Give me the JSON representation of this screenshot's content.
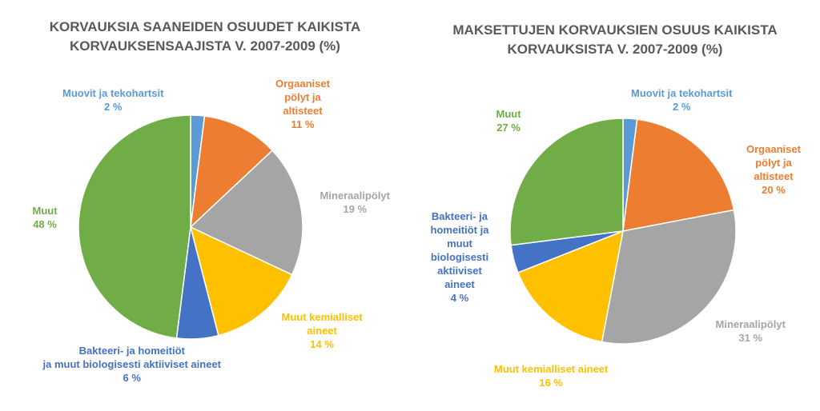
{
  "colors": {
    "blue_light": "#5B9BD5",
    "orange": "#ED7D31",
    "gray": "#A5A5A5",
    "yellow": "#FFC000",
    "blue_dark": "#4472C4",
    "green": "#70AD47"
  },
  "chart_data": [
    {
      "type": "pie",
      "title": [
        "KORVAUKSIA SAANEIDEN OSUUDET KAIKISTA",
        "KORVAUKSENSAAJISTA V. 2007-2009 (%)"
      ],
      "slices": [
        {
          "label": [
            "Muovit ja tekohartsit"
          ],
          "value": 2,
          "value_label": "2 %",
          "color": "#5B9BD5"
        },
        {
          "label": [
            "Orgaaniset",
            "pölyt ja",
            "altisteet"
          ],
          "value": 11,
          "value_label": "11 %",
          "color": "#ED7D31"
        },
        {
          "label": [
            "Mineraalipölyt"
          ],
          "value": 19,
          "value_label": "19 %",
          "color": "#A5A5A5"
        },
        {
          "label": [
            "Muut kemialliset",
            "aineet"
          ],
          "value": 14,
          "value_label": "14 %",
          "color": "#FFC000"
        },
        {
          "label": [
            "Bakteeri- ja homeitiöt",
            "ja muut biologisesti aktiiviset aineet"
          ],
          "value": 6,
          "value_label": "6 %",
          "color": "#4472C4"
        },
        {
          "label": [
            "Muut"
          ],
          "value": 48,
          "value_label": "48 %",
          "color": "#70AD47"
        }
      ]
    },
    {
      "type": "pie",
      "title": [
        "MAKSETTUJEN KORVAUKSIEN OSUUS KAIKISTA",
        "KORVAUKSISTA V. 2007-2009 (%)"
      ],
      "slices": [
        {
          "label": [
            "Muovit ja tekohartsit"
          ],
          "value": 2,
          "value_label": "2 %",
          "color": "#5B9BD5"
        },
        {
          "label": [
            "Orgaaniset",
            "pölyt ja",
            "altisteet"
          ],
          "value": 20,
          "value_label": "20 %",
          "color": "#ED7D31"
        },
        {
          "label": [
            "Mineraalipölyt"
          ],
          "value": 31,
          "value_label": "31 %",
          "color": "#A5A5A5"
        },
        {
          "label": [
            "Muut kemialliset aineet"
          ],
          "value": 16,
          "value_label": "16 %",
          "color": "#FFC000"
        },
        {
          "label": [
            "Bakteeri- ja",
            "homeitiöt ja",
            "muut",
            "biologisesti",
            "aktiiviset",
            "aineet"
          ],
          "value": 4,
          "value_label": "4 %",
          "color": "#4472C4"
        },
        {
          "label": [
            "Muut"
          ],
          "value": 27,
          "value_label": "27 %",
          "color": "#70AD47"
        }
      ]
    }
  ]
}
